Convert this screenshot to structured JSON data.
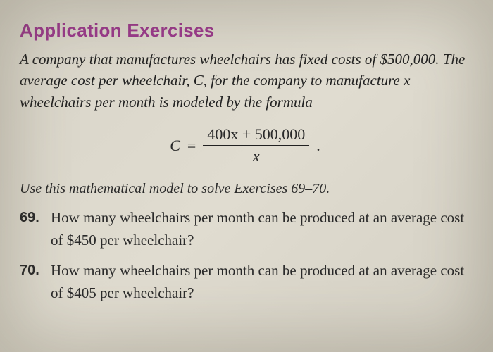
{
  "section_title": "Application Exercises",
  "intro_text": "A company that manufactures wheelchairs has fixed costs of $500,000. The average cost per wheelchair, C, for the company to manufacture x wheelchairs per month is modeled by the formula",
  "formula": {
    "lhs": "C",
    "eq": "=",
    "numerator": "400x + 500,000",
    "denominator": "x",
    "trailing": "."
  },
  "instruction": "Use this mathematical model to solve Exercises 69–70.",
  "exercises": [
    {
      "num": "69.",
      "text": "How many wheelchairs per month can be produced at an average cost of $450 per wheelchair?"
    },
    {
      "num": "70.",
      "text": "How many wheelchairs per month can be produced at an average cost of $405 per wheelchair?"
    }
  ],
  "colors": {
    "title_color": "#9b3a8c",
    "text_color": "#222222",
    "background": "#dcd8cc"
  }
}
